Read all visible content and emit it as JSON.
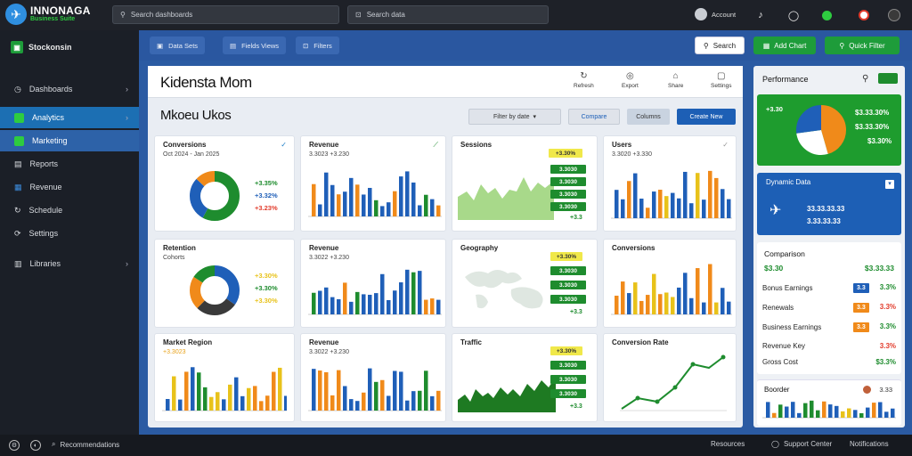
{
  "app": {
    "name": "INNONAGA",
    "tagline": "Business Suite"
  },
  "topbar": {
    "search1": "Search dashboards",
    "search2": "Search data",
    "user": "Account"
  },
  "sidebar": {
    "header": "Stockonsin",
    "items": [
      {
        "label": "Dashboards",
        "icon": "clock-icon",
        "chev": "›"
      },
      {
        "label": "Analytics",
        "icon": "chart-icon",
        "chev": "›"
      },
      {
        "label": "Marketing",
        "icon": "grid-icon",
        "chev": ""
      },
      {
        "label": "Reports",
        "icon": "doc-icon",
        "chev": ""
      },
      {
        "label": "Revenue",
        "icon": "table-icon",
        "chev": ""
      },
      {
        "label": "Schedule",
        "icon": "refresh-icon",
        "chev": ""
      },
      {
        "label": "Settings",
        "icon": "sync-icon",
        "chev": ""
      },
      {
        "label": "Libraries",
        "icon": "library-icon",
        "chev": "›"
      }
    ]
  },
  "ribbon": {
    "tabs": [
      "Data Sets",
      "Fields Views",
      "Filters"
    ],
    "search": "Search",
    "green1": "Add Chart",
    "green2": "Quick Filter"
  },
  "panel": {
    "title": "Kidensta Mom",
    "subtitle": "Mkoeu Ukos",
    "actions": [
      "Refresh",
      "Export",
      "Share",
      "Settings"
    ],
    "sub_buttons": [
      "Filter by date",
      "Compare",
      "Columns",
      "Create New"
    ]
  },
  "cards": [
    {
      "title": "Conversions",
      "sub": "Oct 2024 - Jan 2025",
      "legend": [
        "+3.35%",
        "+3.32%",
        "+3.23%"
      ]
    },
    {
      "title": "Revenue",
      "sub": "3.3023 +3.230"
    },
    {
      "title": "Sessions",
      "tags": [
        "+3.30%",
        "3.3030",
        "3.3030",
        "3.3030",
        "3.3030"
      ],
      "foot": "+3.3"
    },
    {
      "title": "Users",
      "sub": "3.3020 +3.330"
    },
    {
      "title": "Retention",
      "sub": "Cohorts",
      "legend": [
        "+3.30%",
        "+3.30%",
        "+3.30%"
      ]
    },
    {
      "title": "Revenue",
      "sub": "3.3022 +3.230"
    },
    {
      "title": "Geography",
      "tags": [
        "+3.30%",
        "3.3030",
        "3.3030",
        "3.3030"
      ],
      "foot": "+3.3"
    },
    {
      "title": "Conversions"
    },
    {
      "title": "Market Region",
      "sub": "+3.3023"
    },
    {
      "title": "Revenue",
      "sub": "3.3022 +3.230"
    },
    {
      "title": "Traffic",
      "tags": [
        "+3.30%",
        "3.3030",
        "3.3030",
        "3.3030"
      ],
      "foot": "+3.3"
    },
    {
      "title": "Conversion Rate"
    }
  ],
  "right": {
    "header": "Performance",
    "green_card": {
      "label": "+3.30",
      "values": [
        "$3.33.30%",
        "$3.33.30%",
        "$3.30%"
      ]
    },
    "blue_card": {
      "title": "Dynamic Data",
      "v1": "33.33.33.33",
      "v2": "3.33.33.33"
    },
    "list_title": "Comparison",
    "list_value": "$3.30",
    "list_value2": "$3.33.33",
    "rows": [
      {
        "label": "Bonus Earnings",
        "pill": "3.3",
        "pill_color": "#1f5fb8",
        "val": "3.3%",
        "val_color": "#1e8c2e"
      },
      {
        "label": "Renewals",
        "pill": "3.3",
        "pill_color": "#f08a1a",
        "val": "3.3%",
        "val_color": "#e23b2b"
      },
      {
        "label": "Business Earnings",
        "pill": "3.3",
        "pill_color": "#f08a1a",
        "val": "3.3%",
        "val_color": "#1e8c2e"
      },
      {
        "label": "Revenue Key",
        "pill": "",
        "pill_color": "",
        "val": "3.3%",
        "val_color": "#e23b2b"
      },
      {
        "label": "Gross Cost",
        "pill": "",
        "pill_color": "",
        "val": "$3.3%",
        "val_color": "#1e8c2e"
      }
    ],
    "bottom_title": "Boorder",
    "bottom_value": "3.33"
  },
  "bottom": {
    "left": "Recommendations",
    "r1": "Resources",
    "r2": "Support Center",
    "r3": "Notifications"
  },
  "colors": {
    "blue": "#1f5fb8",
    "green": "#1e8c2e",
    "orange": "#f08a1a",
    "yellow": "#e8c21a",
    "navy": "#2b5ba3"
  }
}
